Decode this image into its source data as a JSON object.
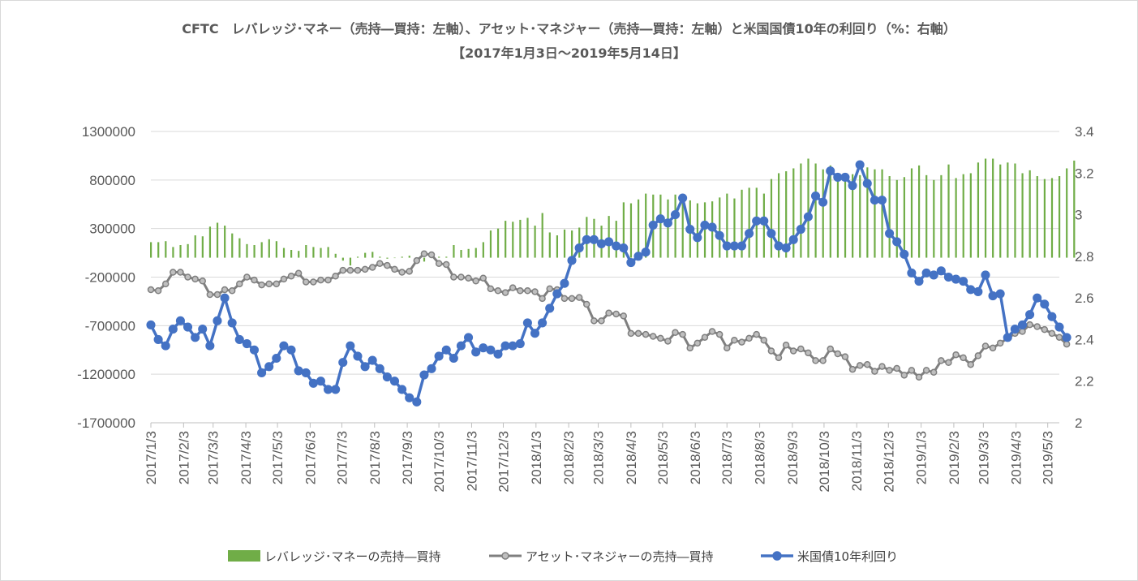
{
  "chart_data": {
    "type": "bar+line",
    "title": "CFTC　レバレッジ･マネー（売持―買持：左軸）、アセット･マネジャー（売持―買持：左軸）と米国国債10年の利回り（%：右軸）",
    "subtitle": "【2017年1月3日～2019年5月14日】",
    "y_left": {
      "ylim": [
        -1700000,
        1300000
      ],
      "ticks": [
        "1300000",
        "800000",
        "300000",
        "-200000",
        "-700000",
        "-1200000",
        "-1700000"
      ]
    },
    "y_right": {
      "ylim": [
        2,
        3.4
      ],
      "ticks": [
        "3.4",
        "3.2",
        "3",
        "2.8",
        "2.6",
        "2.4",
        "2.2",
        "2"
      ]
    },
    "x_ticks": [
      "2017/1/3",
      "2017/2/3",
      "2017/3/3",
      "2017/4/3",
      "2017/5/3",
      "2017/6/3",
      "2017/7/3",
      "2017/8/3",
      "2017/9/3",
      "2017/10/3",
      "2017/11/3",
      "2017/12/3",
      "2018/1/3",
      "2018/2/3",
      "2018/3/3",
      "2018/4/3",
      "2018/5/3",
      "2018/6/3",
      "2018/7/3",
      "2018/8/3",
      "2018/9/3",
      "2018/10/3",
      "2018/11/3",
      "2018/12/3",
      "2019/1/3",
      "2019/2/3",
      "2019/3/3",
      "2019/4/3",
      "2019/5/3"
    ],
    "x_range": [
      "2017/1/3",
      "2019/5/14"
    ],
    "grid": "horizontal",
    "legend_position": "bottom",
    "series": [
      {
        "name": "レバレッジ･マネーの売持―買持",
        "type": "bar",
        "axis": "left",
        "color": "#70ad47",
        "values": [
          160000,
          160000,
          170000,
          110000,
          130000,
          140000,
          230000,
          220000,
          320000,
          360000,
          330000,
          250000,
          200000,
          140000,
          130000,
          160000,
          190000,
          170000,
          100000,
          80000,
          70000,
          130000,
          110000,
          100000,
          110000,
          40000,
          -30000,
          -80000,
          10000,
          50000,
          60000,
          10000,
          -10000,
          0,
          10000,
          20000,
          -30000,
          -40000,
          0,
          10000,
          10000,
          130000,
          80000,
          90000,
          100000,
          160000,
          280000,
          300000,
          380000,
          370000,
          390000,
          410000,
          330000,
          460000,
          260000,
          230000,
          290000,
          280000,
          310000,
          420000,
          400000,
          330000,
          430000,
          380000,
          570000,
          560000,
          600000,
          660000,
          650000,
          650000,
          600000,
          650000,
          640000,
          590000,
          560000,
          570000,
          580000,
          620000,
          660000,
          610000,
          700000,
          720000,
          720000,
          660000,
          810000,
          870000,
          890000,
          920000,
          970000,
          1020000,
          970000,
          910000,
          950000,
          840000,
          850000,
          860000,
          850000,
          930000,
          910000,
          910000,
          840000,
          800000,
          830000,
          920000,
          950000,
          850000,
          800000,
          850000,
          960000,
          820000,
          860000,
          870000,
          980000,
          1020000,
          1020000,
          960000,
          980000,
          970000,
          870000,
          900000,
          840000,
          810000,
          820000,
          840000,
          920000,
          1000000
        ]
      },
      {
        "name": "アセット･マネジャーの売持―買持",
        "type": "line",
        "axis": "left",
        "color": "#7f7f7f",
        "values": [
          -330000,
          -340000,
          -270000,
          -150000,
          -150000,
          -200000,
          -220000,
          -240000,
          -380000,
          -380000,
          -330000,
          -340000,
          -270000,
          -200000,
          -230000,
          -280000,
          -270000,
          -270000,
          -220000,
          -190000,
          -160000,
          -250000,
          -250000,
          -230000,
          -230000,
          -190000,
          -130000,
          -130000,
          -130000,
          -120000,
          -100000,
          -60000,
          -80000,
          -120000,
          -150000,
          -140000,
          -30000,
          40000,
          30000,
          -60000,
          -70000,
          -200000,
          -200000,
          -210000,
          -240000,
          -210000,
          -320000,
          -340000,
          -360000,
          -310000,
          -340000,
          -340000,
          -350000,
          -420000,
          -320000,
          -330000,
          -420000,
          -420000,
          -410000,
          -480000,
          -650000,
          -650000,
          -570000,
          -580000,
          -600000,
          -780000,
          -780000,
          -790000,
          -810000,
          -830000,
          -860000,
          -770000,
          -790000,
          -930000,
          -880000,
          -820000,
          -760000,
          -790000,
          -930000,
          -850000,
          -870000,
          -830000,
          -790000,
          -850000,
          -960000,
          -1030000,
          -900000,
          -960000,
          -940000,
          -980000,
          -1060000,
          -1060000,
          -940000,
          -990000,
          -1020000,
          -1150000,
          -1110000,
          -1100000,
          -1170000,
          -1120000,
          -1160000,
          -1140000,
          -1210000,
          -1160000,
          -1230000,
          -1160000,
          -1180000,
          -1060000,
          -1080000,
          -1000000,
          -1030000,
          -1100000,
          -1010000,
          -910000,
          -930000,
          -880000,
          -830000,
          -780000,
          -760000,
          -690000,
          -710000,
          -740000,
          -780000,
          -820000,
          -890000
        ]
      },
      {
        "name": "米国債10年利回り",
        "type": "line",
        "axis": "right",
        "color": "#4472c4",
        "values": [
          2.47,
          2.4,
          2.37,
          2.45,
          2.49,
          2.46,
          2.41,
          2.45,
          2.37,
          2.49,
          2.6,
          2.48,
          2.4,
          2.38,
          2.35,
          2.24,
          2.27,
          2.31,
          2.37,
          2.35,
          2.25,
          2.24,
          2.19,
          2.2,
          2.16,
          2.16,
          2.29,
          2.37,
          2.32,
          2.27,
          2.3,
          2.26,
          2.22,
          2.2,
          2.16,
          2.12,
          2.1,
          2.23,
          2.26,
          2.32,
          2.35,
          2.31,
          2.37,
          2.41,
          2.34,
          2.36,
          2.35,
          2.33,
          2.37,
          2.37,
          2.38,
          2.48,
          2.43,
          2.48,
          2.55,
          2.62,
          2.67,
          2.78,
          2.84,
          2.88,
          2.88,
          2.86,
          2.87,
          2.85,
          2.84,
          2.77,
          2.8,
          2.82,
          2.95,
          2.98,
          2.96,
          3.0,
          3.08,
          2.93,
          2.89,
          2.95,
          2.94,
          2.9,
          2.85,
          2.85,
          2.85,
          2.91,
          2.97,
          2.97,
          2.91,
          2.85,
          2.84,
          2.88,
          2.93,
          2.99,
          3.09,
          3.06,
          3.21,
          3.18,
          3.18,
          3.14,
          3.24,
          3.15,
          3.07,
          3.07,
          2.91,
          2.87,
          2.81,
          2.72,
          2.68,
          2.72,
          2.71,
          2.73,
          2.7,
          2.69,
          2.68,
          2.64,
          2.63,
          2.71,
          2.61,
          2.62,
          2.41,
          2.45,
          2.47,
          2.52,
          2.6,
          2.57,
          2.51,
          2.46,
          2.41
        ]
      }
    ]
  }
}
